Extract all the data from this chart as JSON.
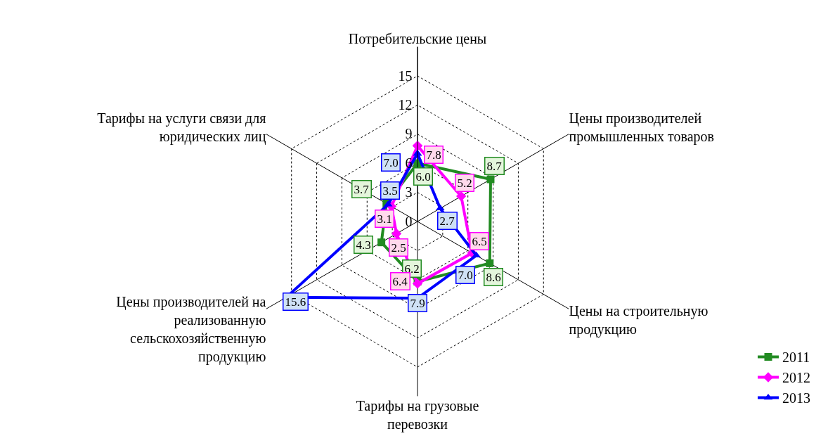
{
  "chart_data": {
    "type": "radar",
    "categories": [
      "Потребительские цены",
      "Цены производителей промышленных товаров",
      "Цены на строительную продукцию",
      "Тарифы на грузовые перевозки",
      "Цены производителей на реализованную сельскохозяйственную продукцию",
      "Тарифы на услуги связи для юридических лиц"
    ],
    "series": [
      {
        "name": "2011",
        "color": "#228b22",
        "marker": "square",
        "values": [
          6.0,
          8.7,
          8.6,
          6.2,
          4.3,
          3.7
        ],
        "value_labels": [
          "6.0",
          "8.7",
          "8.6",
          "6.2",
          "4.3",
          "3.7"
        ]
      },
      {
        "name": "2012",
        "color": "#ff00ff",
        "marker": "diamond",
        "values": [
          7.8,
          5.2,
          6.5,
          6.4,
          2.5,
          3.1
        ],
        "value_labels": [
          "7.8",
          "5.2",
          "6.5",
          "6.4",
          "2.5",
          "3.1"
        ]
      },
      {
        "name": "2013",
        "color": "#0000ff",
        "marker": "triangle",
        "values": [
          7.0,
          2.7,
          7.0,
          7.9,
          15.6,
          3.5
        ],
        "value_labels": [
          "7.0",
          "2.7",
          "7.0",
          "7.9",
          "15.6",
          "3.5"
        ]
      }
    ],
    "ylim": [
      0,
      18
    ],
    "yticks": [
      0,
      3,
      6,
      9,
      12,
      15
    ],
    "grid": true,
    "legend": "bottom right"
  }
}
